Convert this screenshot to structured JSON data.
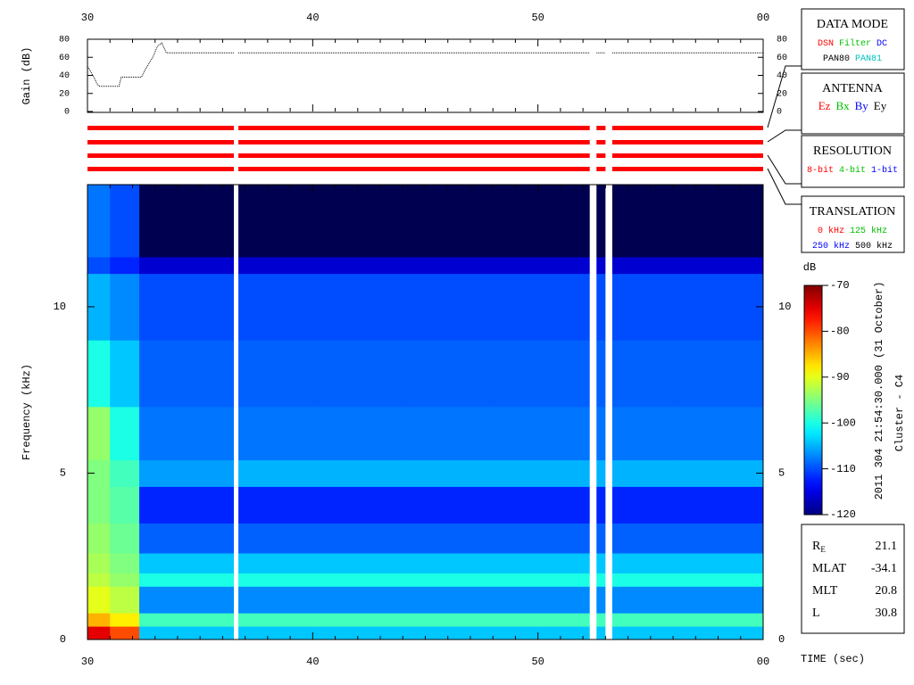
{
  "chart_data": [
    {
      "type": "line",
      "ylabel": "Gain (dB)",
      "x": [
        30,
        30.2,
        30.4,
        30.5,
        31.4,
        31.5,
        32.4,
        32.6,
        32.9,
        33.1,
        33.3,
        33.5,
        36.5,
        36.6,
        36.7,
        52.3,
        52.45,
        52.6,
        53.0,
        53.15,
        53.3,
        60
      ],
      "values": [
        50,
        42,
        32,
        28,
        28,
        38,
        38,
        48,
        60,
        72,
        76,
        65,
        65,
        null,
        65,
        65,
        null,
        65,
        65,
        null,
        65,
        65
      ],
      "color": "#000000",
      "xlim": [
        30,
        60
      ],
      "xticks": [
        30,
        40,
        50,
        {
          "value": 60,
          "label": "00"
        }
      ],
      "ylim": [
        0,
        80
      ],
      "yticks": [
        0,
        20,
        40,
        60,
        80
      ]
    },
    {
      "type": "heatmap",
      "ylabel": "Frequency (kHz)",
      "xlabel": "TIME (sec)",
      "xbins": [
        30,
        31,
        32.3,
        34,
        36.5,
        40,
        44,
        48,
        52.3,
        53.3,
        56,
        60
      ],
      "ybins": [
        0,
        0.4,
        0.8,
        1.6,
        2.0,
        2.6,
        3.5,
        4.6,
        5.4,
        7,
        9,
        11,
        11.5,
        13.67
      ],
      "z": [
        [
          -75,
          -80,
          -104,
          -104,
          -104,
          -104,
          -104,
          -104,
          -104,
          -104,
          -104
        ],
        [
          -85,
          -88,
          -98,
          -98,
          -98,
          -98,
          -98,
          -98,
          -98,
          -98,
          -98
        ],
        [
          -90,
          -92,
          -107,
          -107,
          -107,
          -107,
          -107,
          -107,
          -107,
          -107,
          -107
        ],
        [
          -92,
          -94,
          -100,
          -100,
          -100,
          -100,
          -100,
          -100,
          -100,
          -100,
          -100
        ],
        [
          -93,
          -95,
          -104,
          -104,
          -104,
          -104,
          -104,
          -104,
          -104,
          -104,
          -104
        ],
        [
          -94,
          -96,
          -109,
          -109,
          -109,
          -109,
          -109,
          -109,
          -109,
          -109,
          -109
        ],
        [
          -95,
          -97,
          -112,
          -112,
          -112,
          -112,
          -112,
          -112,
          -112,
          -112,
          -112
        ],
        [
          -95,
          -98,
          -106,
          -106,
          -105,
          -105,
          -105,
          -105,
          -105,
          -105,
          -105
        ],
        [
          -94,
          -100,
          -108,
          -108,
          -108,
          -108,
          -108,
          -108,
          -108,
          -108,
          -108
        ],
        [
          -100,
          -104,
          -109,
          -109,
          -109,
          -109,
          -109,
          -109,
          -109,
          -109,
          -109
        ],
        [
          -105,
          -107,
          -110,
          -110,
          -110,
          -110,
          -110,
          -110,
          -110,
          -110,
          -110
        ],
        [
          -110,
          -112,
          -116,
          -116,
          -116,
          -116,
          -116,
          -116,
          -116,
          -116,
          -116
        ],
        [
          -108,
          -110,
          -125,
          -125,
          -125,
          -125,
          -125,
          -125,
          -125,
          -125,
          -125
        ]
      ],
      "xlim": [
        30,
        60
      ],
      "xticks": [
        30,
        40,
        50,
        {
          "value": 60,
          "label": "00"
        }
      ],
      "ylim": [
        0,
        13.67
      ],
      "yticks": [
        0,
        5,
        10
      ],
      "colorbar": {
        "label": "dB",
        "lim": [
          -120,
          -70
        ],
        "ticks": [
          -120,
          -110,
          -100,
          -90,
          -80,
          -70
        ],
        "colormap": "jet",
        "under_color": "#000050"
      },
      "gaps": [
        [
          36.5,
          36.7
        ],
        [
          52.3,
          52.6
        ],
        [
          53.0,
          53.3
        ]
      ]
    }
  ],
  "status_bars": {
    "color": "#ff0000"
  },
  "legend_panels": [
    {
      "title": "DATA MODE",
      "rows": [
        [
          {
            "text": "DSN",
            "color": "#ff0000"
          },
          {
            "text": "Filter",
            "color": "#00c000"
          },
          {
            "text": "DC",
            "color": "#0000ff"
          }
        ],
        [
          {
            "text": "PAN80",
            "color": "#000000"
          },
          {
            "text": "PAN81",
            "color": "#00c0c0"
          }
        ]
      ]
    },
    {
      "title": "ANTENNA",
      "rows": [
        [
          {
            "text": "Ez",
            "color": "#ff0000"
          },
          {
            "text": "Bx",
            "color": "#00c000"
          },
          {
            "text": "By",
            "color": "#0000ff"
          },
          {
            "text": "Ey",
            "color": "#000000"
          }
        ]
      ]
    },
    {
      "title": "RESOLUTION",
      "rows": [
        [
          {
            "text": "8-bit",
            "color": "#ff0000"
          },
          {
            "text": "4-bit",
            "color": "#00c000"
          },
          {
            "text": "1-bit",
            "color": "#0000ff"
          }
        ]
      ]
    },
    {
      "title": "TRANSLATION",
      "rows": [
        [
          {
            "text": "0 kHz",
            "color": "#ff0000"
          },
          {
            "text": "125 kHz",
            "color": "#00c000"
          }
        ],
        [
          {
            "text": "250 kHz",
            "color": "#0000ff"
          },
          {
            "text": "500 kHz",
            "color": "#000000"
          }
        ]
      ]
    }
  ],
  "header": {
    "date": "2011 304 21:54:30.000 (31 October)",
    "spacecraft": "Cluster - C4"
  },
  "ephemeris": [
    {
      "label": "R",
      "sub": "E",
      "value": 21.1
    },
    {
      "label": "MLAT",
      "value": -34.1
    },
    {
      "label": "MLT",
      "value": 20.8
    },
    {
      "label": "L",
      "value": 30.8
    }
  ]
}
